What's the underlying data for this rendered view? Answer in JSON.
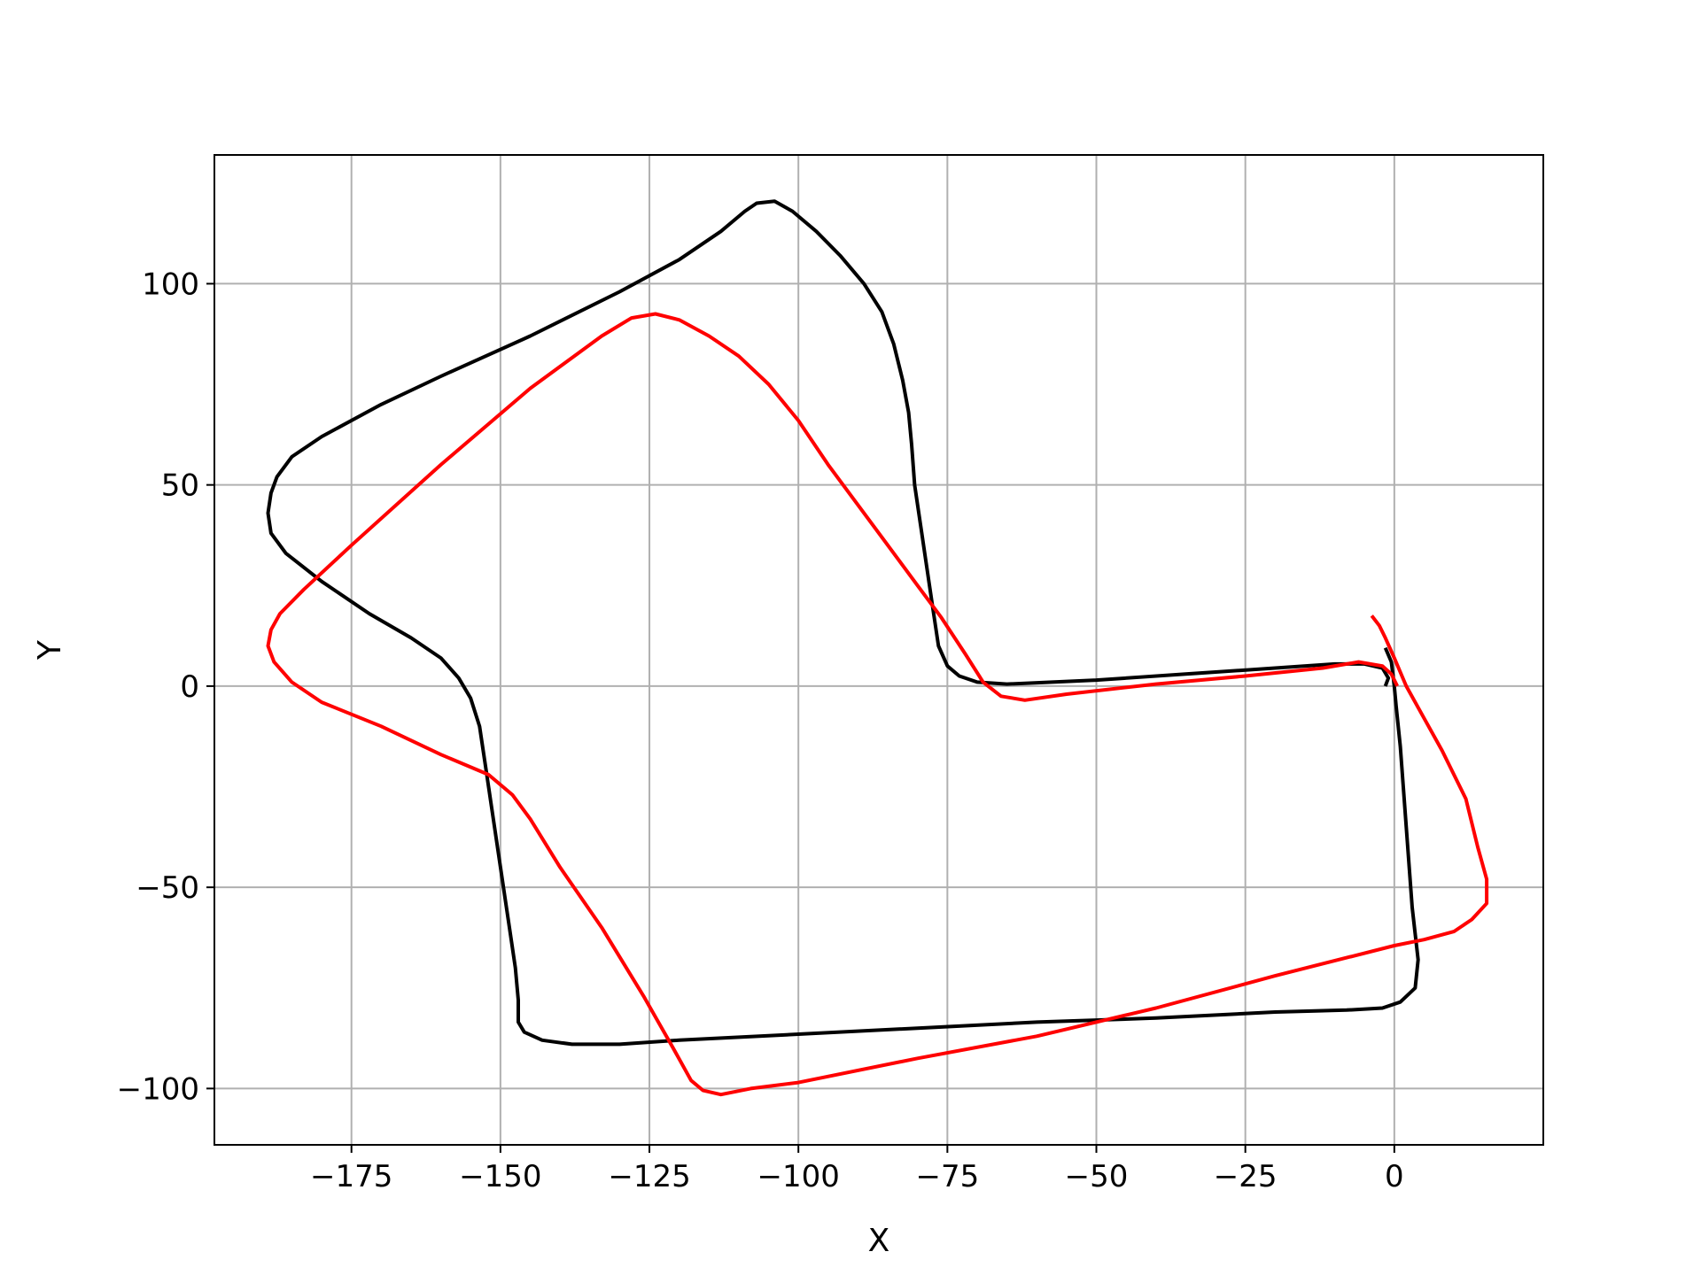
{
  "chart_data": {
    "type": "line",
    "title": "",
    "xlabel": "X",
    "ylabel": "Y",
    "xlim": [
      -198,
      25
    ],
    "ylim": [
      -114,
      132
    ],
    "grid": true,
    "legend": "none",
    "xticks": [
      -175,
      -150,
      -125,
      -100,
      -75,
      -50,
      -25,
      0
    ],
    "yticks": [
      -100,
      -50,
      0,
      50,
      100
    ],
    "series": [
      {
        "color": "#000000",
        "points": [
          [
            -1.5,
            9.5
          ],
          [
            -0.5,
            6
          ],
          [
            0,
            0
          ],
          [
            0.3,
            -5
          ],
          [
            1,
            -15
          ],
          [
            2,
            -35
          ],
          [
            3,
            -55
          ],
          [
            4,
            -68
          ],
          [
            3.5,
            -75
          ],
          [
            1,
            -78.5
          ],
          [
            -2,
            -80
          ],
          [
            -8,
            -80.5
          ],
          [
            -20,
            -81
          ],
          [
            -40,
            -82.5
          ],
          [
            -60,
            -83.5
          ],
          [
            -80,
            -85
          ],
          [
            -100,
            -86.5
          ],
          [
            -120,
            -88
          ],
          [
            -130,
            -89
          ],
          [
            -138,
            -89
          ],
          [
            -143,
            -88
          ],
          [
            -146,
            -86
          ],
          [
            -147,
            -83.5
          ],
          [
            -147,
            -78
          ],
          [
            -147.5,
            -70
          ],
          [
            -148.5,
            -60
          ],
          [
            -150,
            -45
          ],
          [
            -151.5,
            -30
          ],
          [
            -152.5,
            -20
          ],
          [
            -153.5,
            -10
          ],
          [
            -155,
            -3
          ],
          [
            -157,
            2
          ],
          [
            -160,
            7
          ],
          [
            -165,
            12
          ],
          [
            -172,
            18
          ],
          [
            -180,
            26
          ],
          [
            -186,
            33
          ],
          [
            -188.5,
            38
          ],
          [
            -189,
            43
          ],
          [
            -188.5,
            48
          ],
          [
            -187.5,
            52
          ],
          [
            -185,
            57
          ],
          [
            -180,
            62
          ],
          [
            -170,
            70
          ],
          [
            -160,
            77
          ],
          [
            -145,
            87
          ],
          [
            -130,
            98
          ],
          [
            -120,
            106
          ],
          [
            -113,
            113
          ],
          [
            -109,
            118
          ],
          [
            -107,
            120
          ],
          [
            -104,
            120.5
          ],
          [
            -101,
            118
          ],
          [
            -97,
            113
          ],
          [
            -93,
            107
          ],
          [
            -89,
            100
          ],
          [
            -86,
            93
          ],
          [
            -84,
            85
          ],
          [
            -82.5,
            76
          ],
          [
            -81.5,
            68
          ],
          [
            -81,
            60
          ],
          [
            -80.5,
            50
          ],
          [
            -79.5,
            40
          ],
          [
            -78.5,
            30
          ],
          [
            -77.5,
            20
          ],
          [
            -76.5,
            10
          ],
          [
            -75,
            5
          ],
          [
            -73,
            2.5
          ],
          [
            -70,
            1
          ],
          [
            -65,
            0.5
          ],
          [
            -50,
            1.5
          ],
          [
            -35,
            3
          ],
          [
            -20,
            4.5
          ],
          [
            -10,
            5.5
          ],
          [
            -5,
            5.5
          ],
          [
            -2,
            4.5
          ],
          [
            -1,
            2
          ],
          [
            -1.5,
            0
          ]
        ]
      },
      {
        "color": "#ff0000",
        "points": [
          [
            -3.8,
            17.5
          ],
          [
            -2.5,
            15
          ],
          [
            -1.5,
            12
          ],
          [
            0,
            7
          ],
          [
            2,
            0
          ],
          [
            5,
            -8
          ],
          [
            8,
            -16
          ],
          [
            12,
            -28
          ],
          [
            14,
            -40
          ],
          [
            15.5,
            -48
          ],
          [
            15.5,
            -54
          ],
          [
            13,
            -58
          ],
          [
            10,
            -61
          ],
          [
            5,
            -63
          ],
          [
            0,
            -64.5
          ],
          [
            -20,
            -72
          ],
          [
            -40,
            -80
          ],
          [
            -60,
            -87
          ],
          [
            -80,
            -92.5
          ],
          [
            -100,
            -98.5
          ],
          [
            -108,
            -100
          ],
          [
            -113,
            -101.5
          ],
          [
            -116,
            -100.5
          ],
          [
            -118,
            -98
          ],
          [
            -121,
            -90
          ],
          [
            -126,
            -77
          ],
          [
            -133,
            -60
          ],
          [
            -140,
            -45
          ],
          [
            -145,
            -33
          ],
          [
            -148,
            -27
          ],
          [
            -152,
            -22
          ],
          [
            -160,
            -17
          ],
          [
            -170,
            -10
          ],
          [
            -180,
            -4
          ],
          [
            -185,
            1
          ],
          [
            -188,
            6
          ],
          [
            -189,
            10
          ],
          [
            -188.5,
            14
          ],
          [
            -187,
            18
          ],
          [
            -183,
            24
          ],
          [
            -175,
            35
          ],
          [
            -160,
            55
          ],
          [
            -145,
            74
          ],
          [
            -133,
            87
          ],
          [
            -128,
            91.5
          ],
          [
            -124,
            92.5
          ],
          [
            -120,
            91
          ],
          [
            -115,
            87
          ],
          [
            -110,
            82
          ],
          [
            -105,
            75
          ],
          [
            -100,
            66
          ],
          [
            -95,
            55
          ],
          [
            -90,
            45
          ],
          [
            -85,
            35
          ],
          [
            -80,
            25
          ],
          [
            -76,
            17
          ],
          [
            -72,
            8
          ],
          [
            -69,
            1
          ],
          [
            -66,
            -2.5
          ],
          [
            -62,
            -3.5
          ],
          [
            -55,
            -2
          ],
          [
            -40,
            0.5
          ],
          [
            -25,
            2.5
          ],
          [
            -12,
            4.5
          ],
          [
            -6,
            6
          ],
          [
            -2,
            5
          ],
          [
            -0.5,
            3
          ],
          [
            0.5,
            0
          ]
        ]
      }
    ]
  }
}
